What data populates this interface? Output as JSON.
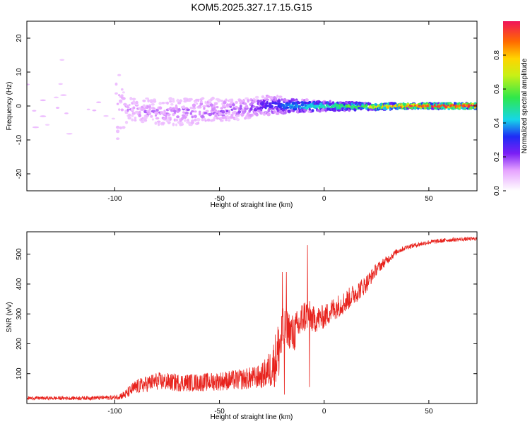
{
  "title": "KOM5.2025.327.17.15.G15",
  "chart_data": [
    {
      "type": "heatmap",
      "xlabel": "Height of straight line (km)",
      "ylabel": "Frequency (Hz)",
      "xlim": [
        -142,
        73
      ],
      "ylim": [
        -25,
        25
      ],
      "xticks": [
        -100,
        -50,
        0,
        50
      ],
      "yticks": [
        -20,
        -10,
        0,
        10,
        20
      ],
      "colorbar": {
        "label": "Normalized spectral amplitude",
        "range": [
          0,
          1
        ],
        "ticks": [
          "0.0",
          "0.2",
          "0.4",
          "0.6",
          "0.8"
        ]
      },
      "description_points": [
        {
          "x": -142,
          "freq_center": 0,
          "freq_spread": 24,
          "amplitude": 0.08
        },
        {
          "x": -100,
          "freq_center": 0,
          "freq_spread": 22,
          "amplitude": 0.08
        },
        {
          "x": -95,
          "freq_center": -1,
          "freq_spread": 4,
          "amplitude": 0.12
        },
        {
          "x": -80,
          "freq_center": -2,
          "freq_spread": 4,
          "amplitude": 0.14
        },
        {
          "x": -60,
          "freq_center": -1.5,
          "freq_spread": 4,
          "amplitude": 0.16
        },
        {
          "x": -40,
          "freq_center": -1,
          "freq_spread": 3,
          "amplitude": 0.18
        },
        {
          "x": -25,
          "freq_center": 0.5,
          "freq_spread": 3,
          "amplitude": 0.25
        },
        {
          "x": -15,
          "freq_center": 0,
          "freq_spread": 2,
          "amplitude": 0.35
        },
        {
          "x": 0,
          "freq_center": 0,
          "freq_spread": 1.5,
          "amplitude": 0.45
        },
        {
          "x": 20,
          "freq_center": -0.2,
          "freq_spread": 1,
          "amplitude": 0.6
        },
        {
          "x": 40,
          "freq_center": 0,
          "freq_spread": 0.8,
          "amplitude": 0.85
        },
        {
          "x": 73,
          "freq_center": 0,
          "freq_spread": 0.8,
          "amplitude": 0.98
        }
      ]
    },
    {
      "type": "line",
      "xlabel": "Height of straight line (km)",
      "ylabel": "SNR (v/v)",
      "xlim": [
        -142,
        73
      ],
      "ylim": [
        0,
        575
      ],
      "xticks": [
        -100,
        -50,
        0,
        50
      ],
      "yticks": [
        100,
        200,
        300,
        400,
        500
      ],
      "series": [
        {
          "name": "SNR",
          "color": "#e8231d",
          "x": [
            -142,
            -120,
            -100,
            -95,
            -90,
            -80,
            -70,
            -60,
            -50,
            -40,
            -30,
            -25,
            -22,
            -20,
            -18,
            -15,
            -12,
            -10,
            -8,
            -5,
            0,
            5,
            10,
            15,
            20,
            25,
            30,
            35,
            40,
            50,
            60,
            73
          ],
          "y": [
            18,
            18,
            20,
            30,
            55,
            75,
            70,
            70,
            75,
            80,
            90,
            120,
            170,
            230,
            260,
            230,
            260,
            290,
            300,
            280,
            290,
            320,
            340,
            370,
            400,
            450,
            480,
            510,
            525,
            540,
            548,
            552
          ],
          "noise": [
            6,
            6,
            8,
            15,
            25,
            30,
            30,
            30,
            32,
            35,
            40,
            70,
            110,
            90,
            60,
            70,
            60,
            60,
            55,
            45,
            40,
            40,
            38,
            35,
            30,
            20,
            15,
            10,
            8,
            8,
            7,
            6
          ],
          "spikes": [
            {
              "x": -20,
              "y": 440
            },
            {
              "x": -18,
              "y": 440
            },
            {
              "x": -8,
              "y": 530
            },
            {
              "x": -7,
              "y": 55
            },
            {
              "x": -19,
              "y": 30
            }
          ]
        }
      ]
    }
  ]
}
